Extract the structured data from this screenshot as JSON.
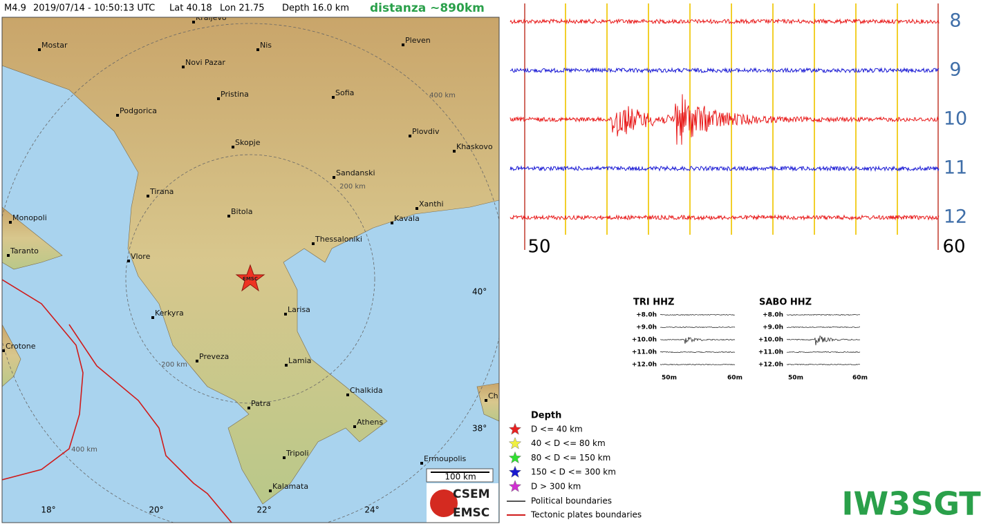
{
  "header": {
    "magnitude": "M4.9",
    "datetime": "2019/07/14 - 10:50:13 UTC",
    "lat": "Lat 40.18",
    "lon": "Lon 21.75",
    "depth": "Depth  16.0 km",
    "distance": "distanza ~890km"
  },
  "map": {
    "cities": [
      "Kraljevo",
      "Mostar",
      "Nis",
      "Pleven",
      "Novi Pazar",
      "Pristina",
      "Sofia",
      "Podgorica",
      "Plovdiv",
      "Skopje",
      "Khaskovo",
      "Sandanski",
      "Tirana",
      "Xanthi",
      "Bitola",
      "Kavala",
      "Monopoli",
      "Thessaloniki",
      "Taranto",
      "Vlore",
      "Kerkyra",
      "Larisa",
      "Crotone",
      "Preveza",
      "Lamia",
      "Chalkida",
      "Chi",
      "Patra",
      "Athens",
      "Tripoli",
      "Ermoupolis",
      "Kalamata"
    ],
    "epicenter_label": "EMSC",
    "distance_labels": [
      "400 km",
      "200 km",
      "200 km",
      "400 km"
    ],
    "lat_labels": [
      "40°",
      "38°"
    ],
    "lon_labels": [
      "18°",
      "20°",
      "22°",
      "24°"
    ],
    "scale": "100 km",
    "logo": [
      "CSEM",
      "EMSC"
    ]
  },
  "seismogram": {
    "hours": [
      "8",
      "9",
      "10",
      "11",
      "12"
    ],
    "x_labels": [
      "50",
      "60"
    ]
  },
  "stations": [
    {
      "name": "TRI HHZ",
      "rows": [
        "+8.0h",
        "+9.0h",
        "+10.0h",
        "+11.0h",
        "+12.0h"
      ],
      "x_labels": [
        "50m",
        "60m"
      ]
    },
    {
      "name": "SABO HHZ",
      "rows": [
        "+8.0h",
        "+9.0h",
        "+10.0h",
        "+11.0h",
        "+12.0h"
      ],
      "x_labels": [
        "50m",
        "60m"
      ]
    }
  ],
  "legend": {
    "title": "Depth",
    "depth_classes": [
      "D <= 40 km",
      "40 < D <= 80 km",
      "80 < D <= 150 km",
      "150 < D <= 300 km",
      "D > 300 km"
    ],
    "lines": [
      "Political boundaries",
      "Tectonic plates boundaries"
    ]
  },
  "callsign": "IW3SGT"
}
